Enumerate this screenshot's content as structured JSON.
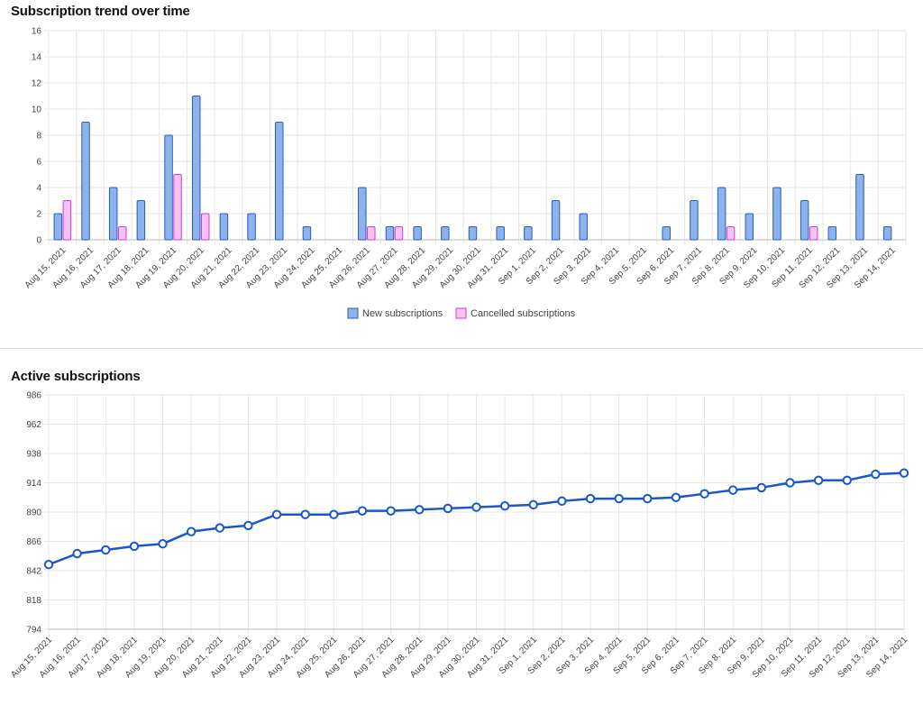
{
  "page": {
    "section1_title": "Subscription trend over time",
    "section2_title": "Active subscriptions"
  },
  "colors": {
    "new_fill": "#8db3ef",
    "new_stroke": "#2a5db0",
    "cancel_fill": "#f6c2f2",
    "cancel_stroke": "#d63ad1",
    "line": "#1a56cc",
    "grid": "#e6e6e6"
  },
  "chart_data": [
    {
      "type": "bar",
      "title": "Subscription trend over time",
      "categories": [
        "Aug 15, 2021",
        "Aug 16, 2021",
        "Aug 17, 2021",
        "Aug 18, 2021",
        "Aug 19, 2021",
        "Aug 20, 2021",
        "Aug 21, 2021",
        "Aug 22, 2021",
        "Aug 23, 2021",
        "Aug 24, 2021",
        "Aug 25, 2021",
        "Aug 26, 2021",
        "Aug 27, 2021",
        "Aug 28, 2021",
        "Aug 29, 2021",
        "Aug 30, 2021",
        "Aug 31, 2021",
        "Sep 1, 2021",
        "Sep 2, 2021",
        "Sep 3, 2021",
        "Sep 4, 2021",
        "Sep 5, 2021",
        "Sep 6, 2021",
        "Sep 7, 2021",
        "Sep 8, 2021",
        "Sep 9, 2021",
        "Sep 10, 2021",
        "Sep 11, 2021",
        "Sep 12, 2021",
        "Sep 13, 2021",
        "Sep 14, 2021"
      ],
      "series": [
        {
          "name": "New subscriptions",
          "values": [
            2,
            9,
            4,
            3,
            8,
            11,
            2,
            2,
            9,
            1,
            0,
            4,
            1,
            1,
            1,
            1,
            1,
            1,
            3,
            2,
            0,
            0,
            1,
            3,
            4,
            2,
            4,
            3,
            1,
            5,
            1
          ]
        },
        {
          "name": "Cancelled subscriptions",
          "values": [
            3,
            0,
            1,
            0,
            5,
            2,
            0,
            0,
            0,
            0,
            0,
            1,
            1,
            0,
            0,
            0,
            0,
            0,
            0,
            0,
            0,
            0,
            0,
            0,
            1,
            0,
            0,
            1,
            0,
            0,
            0
          ]
        }
      ],
      "yticks": [
        0,
        2,
        4,
        6,
        8,
        10,
        12,
        14,
        16
      ],
      "ylim": [
        0,
        16
      ],
      "grid": true,
      "legend": "bottom-center"
    },
    {
      "type": "line",
      "title": "Active subscriptions",
      "categories": [
        "Aug 15, 2021",
        "Aug 16, 2021",
        "Aug 17, 2021",
        "Aug 18, 2021",
        "Aug 19, 2021",
        "Aug 20, 2021",
        "Aug 21, 2021",
        "Aug 22, 2021",
        "Aug 23, 2021",
        "Aug 24, 2021",
        "Aug 25, 2021",
        "Aug 26, 2021",
        "Aug 27, 2021",
        "Aug 28, 2021",
        "Aug 29, 2021",
        "Aug 30, 2021",
        "Aug 31, 2021",
        "Sep 1, 2021",
        "Sep 2, 2021",
        "Sep 3, 2021",
        "Sep 4, 2021",
        "Sep 5, 2021",
        "Sep 6, 2021",
        "Sep 7, 2021",
        "Sep 8, 2021",
        "Sep 9, 2021",
        "Sep 10, 2021",
        "Sep 11, 2021",
        "Sep 12, 2021",
        "Sep 13, 2021",
        "Sep 14, 2021"
      ],
      "series": [
        {
          "values": [
            847,
            856,
            859,
            862,
            864,
            874,
            877,
            879,
            888,
            888,
            888,
            891,
            891,
            892,
            893,
            894,
            895,
            896,
            899,
            901,
            901,
            901,
            902,
            905,
            908,
            910,
            914,
            916,
            916,
            921,
            922
          ]
        }
      ],
      "yticks": [
        794,
        818,
        842,
        866,
        890,
        914,
        938,
        962,
        986
      ],
      "ylim": [
        794,
        986
      ],
      "grid": true
    }
  ]
}
